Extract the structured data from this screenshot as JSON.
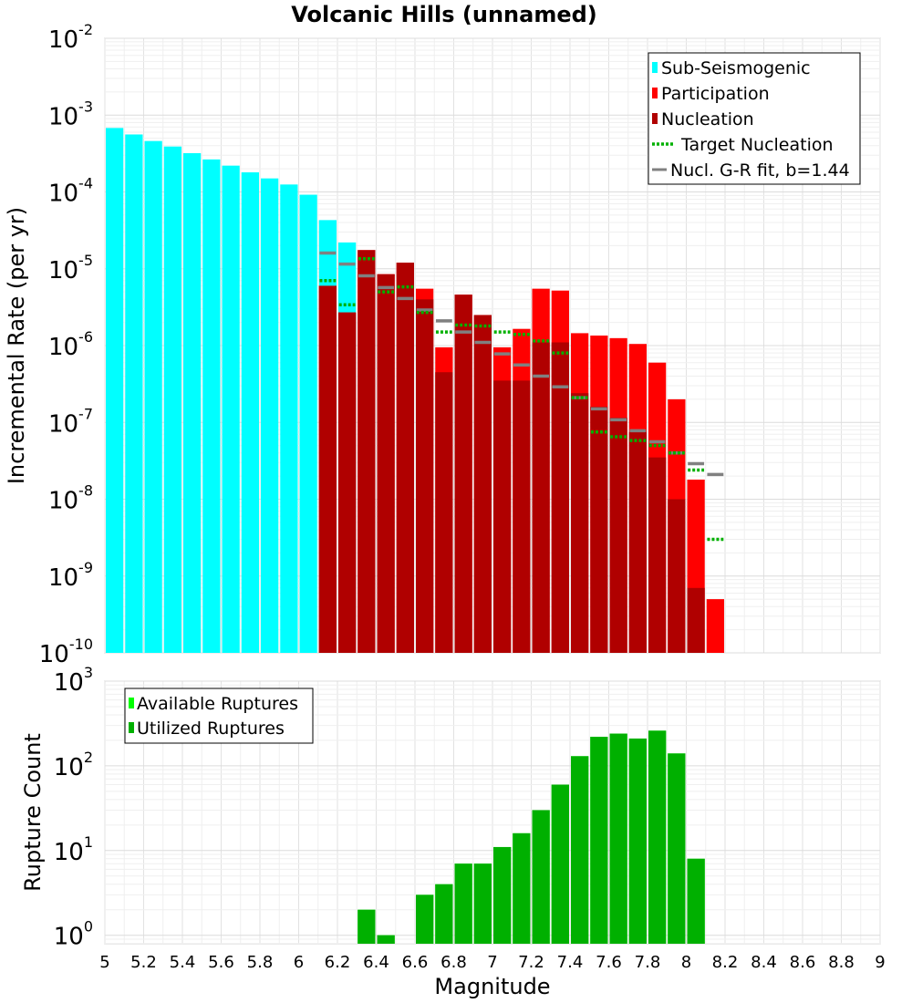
{
  "chart_data": [
    {
      "type": "bar",
      "title": "Volcanic Hills (unnamed)",
      "ylabel": "Incremental Rate (per yr)",
      "xlabel": "",
      "xlim": [
        5,
        9
      ],
      "ylim_exp": [
        -10,
        -2
      ],
      "scale": "log",
      "bin_width": 0.1,
      "y_tick_exponents": [
        -2,
        -3,
        -4,
        -5,
        -6,
        -7,
        -8,
        -9,
        -10
      ],
      "y_tick_base": "10",
      "legend": {
        "position": "top-right",
        "entries": [
          {
            "label": "Sub-Seismogenic",
            "color": "#00ffff",
            "kind": "box"
          },
          {
            "label": "Participation",
            "color": "#ff0000",
            "kind": "box"
          },
          {
            "label": "Nucleation",
            "color": "#b00000",
            "kind": "box"
          },
          {
            "label": "Target Nucleation",
            "color": "#00b000",
            "kind": "dotted"
          },
          {
            "label": "Nucl. G-R fit, b=1.44",
            "color": "#808080",
            "kind": "line"
          }
        ]
      },
      "series": [
        {
          "name": "Sub-Seismogenic",
          "color": "#00ffff",
          "x": [
            5.0,
            5.1,
            5.2,
            5.3,
            5.4,
            5.5,
            5.6,
            5.7,
            5.8,
            5.9,
            6.0,
            6.1,
            6.2
          ],
          "values": [
            0.00068,
            0.00056,
            0.00046,
            0.00039,
            0.00032,
            0.000265,
            0.00022,
            0.00018,
            0.00015,
            0.000125,
            9.2e-05,
            4.3e-05,
            2.2e-05
          ]
        },
        {
          "name": "Participation",
          "color": "#ff0000",
          "x": [
            6.1,
            6.2,
            6.3,
            6.4,
            6.5,
            6.6,
            6.7,
            6.8,
            6.9,
            7.0,
            7.1,
            7.2,
            7.3,
            7.4,
            7.5,
            7.6,
            7.7,
            7.8,
            7.9,
            8.0,
            8.1
          ],
          "values": [
            6e-06,
            2.7e-06,
            1.75e-05,
            8.5e-06,
            1.2e-05,
            5.5e-06,
            9.5e-07,
            4.6e-06,
            2.5e-06,
            9.5e-07,
            1.65e-06,
            5.5e-06,
            5.2e-06,
            1.45e-06,
            1.35e-06,
            1.25e-06,
            1.05e-06,
            6e-07,
            2e-07,
            1.8e-08,
            5e-10
          ]
        },
        {
          "name": "Nucleation",
          "color": "#b00000",
          "x": [
            6.1,
            6.2,
            6.3,
            6.4,
            6.5,
            6.6,
            6.7,
            6.8,
            6.9,
            7.0,
            7.1,
            7.2,
            7.3,
            7.4,
            7.5,
            7.6,
            7.7,
            7.8,
            7.9,
            8.0
          ],
          "values": [
            6e-06,
            2.7e-06,
            1.75e-05,
            8.5e-06,
            1.2e-05,
            4e-06,
            4.5e-07,
            4.6e-06,
            2.5e-06,
            3.5e-07,
            3.5e-07,
            1.1e-06,
            1.1e-06,
            2.4e-07,
            1.6e-07,
            1.15e-07,
            7.5e-08,
            3.5e-08,
            1e-08,
            7e-10
          ]
        },
        {
          "name": "Target Nucleation",
          "color": "#00b000",
          "x": [
            6.1,
            6.2,
            6.3,
            6.4,
            6.5,
            6.6,
            6.7,
            6.8,
            6.9,
            7.0,
            7.1,
            7.2,
            7.3,
            7.4,
            7.5,
            7.6,
            7.7,
            7.8,
            7.9,
            8.0,
            8.1
          ],
          "values": [
            7e-06,
            3.4e-06,
            1.35e-05,
            5e-06,
            5.8e-06,
            2.7e-06,
            1.5e-06,
            1.85e-06,
            1.8e-06,
            1.5e-06,
            1.4e-06,
            1.15e-06,
            8e-07,
            2.1e-07,
            7.5e-08,
            6.5e-08,
            5.8e-08,
            5e-08,
            4e-08,
            2.4e-08,
            3e-09
          ]
        },
        {
          "name": "Nucl. G-R fit, b=1.44",
          "color": "#808080",
          "x": [
            6.1,
            6.2,
            6.3,
            6.4,
            6.5,
            6.6,
            6.7,
            6.8,
            6.9,
            7.0,
            7.1,
            7.2,
            7.3,
            7.4,
            7.5,
            7.6,
            7.7,
            7.8,
            7.9,
            8.0,
            8.1
          ],
          "values": [
            1.6e-05,
            1.15e-05,
            8.1e-06,
            5.7e-06,
            4.1e-06,
            2.9e-06,
            2.1e-06,
            1.5e-06,
            1.1e-06,
            7.8e-07,
            5.6e-07,
            4e-07,
            2.9e-07,
            2.1e-07,
            1.5e-07,
            1.08e-07,
            7.8e-08,
            5.6e-08,
            4e-08,
            2.9e-08,
            2.1e-08
          ]
        }
      ]
    },
    {
      "type": "bar",
      "title": "",
      "ylabel": "Rupture Count",
      "xlabel": "Magnitude",
      "xlim": [
        5,
        9
      ],
      "x_ticks": [
        "5",
        "5.2",
        "5.4",
        "5.6",
        "5.8",
        "6",
        "6.2",
        "6.4",
        "6.6",
        "6.8",
        "7",
        "7.2",
        "7.4",
        "7.6",
        "7.8",
        "8",
        "8.2",
        "8.4",
        "8.6",
        "8.8",
        "9"
      ],
      "ylim_exp": [
        -0.1,
        3
      ],
      "scale": "log",
      "bin_width": 0.1,
      "y_tick_exponents": [
        3,
        2,
        1,
        0
      ],
      "y_tick_base": "10",
      "legend": {
        "position": "top-left",
        "entries": [
          {
            "label": "Available Ruptures",
            "color": "#00ff00",
            "kind": "box"
          },
          {
            "label": "Utilized Ruptures",
            "color": "#00b000",
            "kind": "box"
          }
        ]
      },
      "series": [
        {
          "name": "Available Ruptures",
          "color": "#00ff00",
          "x": [
            6.3,
            6.4,
            6.6,
            6.7,
            6.8,
            6.9,
            7.0,
            7.1,
            7.2,
            7.3,
            7.4,
            7.5,
            7.6,
            7.7,
            7.8,
            7.9,
            8.0
          ],
          "values": [
            2,
            1,
            3,
            4,
            7,
            7,
            11,
            16,
            30,
            60,
            130,
            220,
            240,
            210,
            260,
            140,
            8
          ]
        },
        {
          "name": "Utilized Ruptures",
          "color": "#00b000",
          "x": [
            6.3,
            6.4,
            6.6,
            6.7,
            6.8,
            6.9,
            7.0,
            7.1,
            7.2,
            7.3,
            7.4,
            7.5,
            7.6,
            7.7,
            7.8,
            7.9,
            8.0
          ],
          "values": [
            2,
            1,
            3,
            4,
            7,
            7,
            11,
            16,
            30,
            60,
            130,
            220,
            240,
            210,
            260,
            140,
            8
          ]
        }
      ]
    }
  ]
}
